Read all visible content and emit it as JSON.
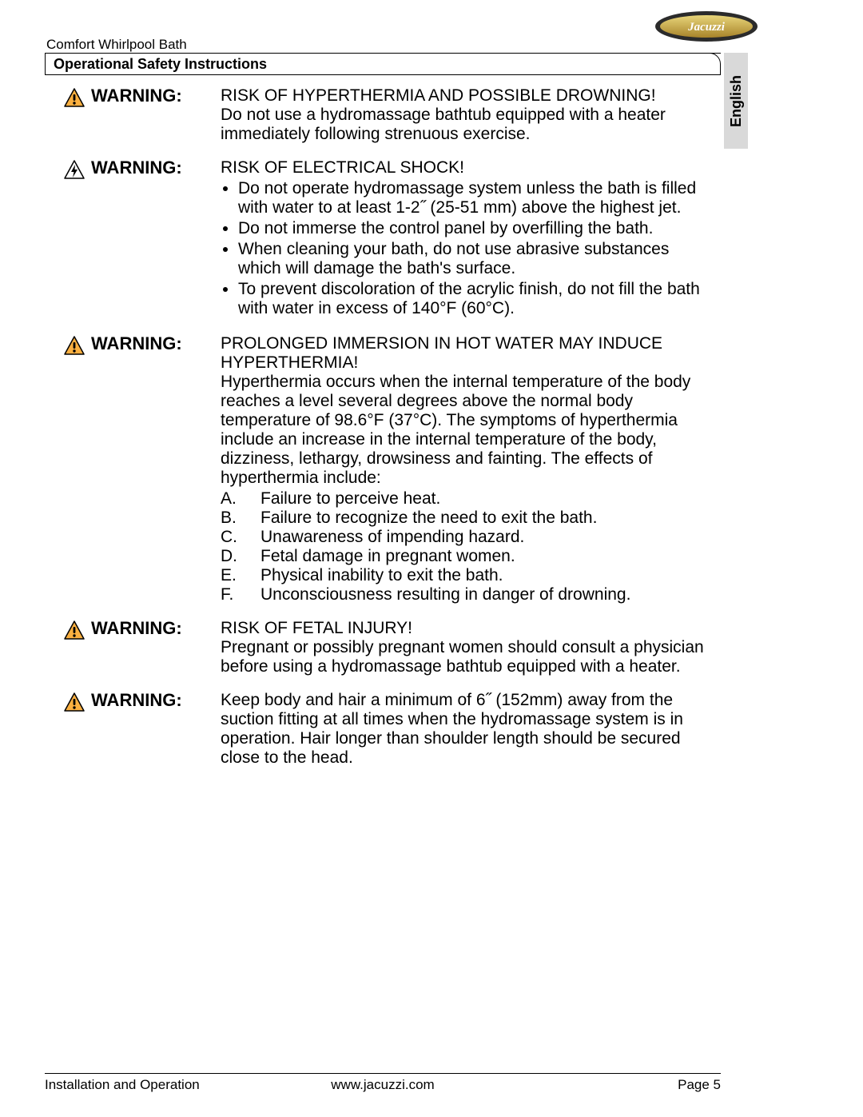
{
  "header": {
    "doc_title": "Comfort Whirlpool Bath",
    "section_title": "Operational Safety Instructions",
    "language_tab": "English",
    "logo_text": "Jacuzzi",
    "logo_colors": {
      "outer": "#2b2b2b",
      "inner_top": "#e8d57a",
      "inner_bottom": "#a8842a",
      "text": "#ffffff"
    }
  },
  "icons": {
    "warning_triangle": {
      "fill": "#fbb040",
      "stroke": "#000000",
      "bang": "#000000"
    },
    "shock_triangle": {
      "fill": "#ffffff",
      "stroke": "#000000",
      "bolt": "#000000"
    }
  },
  "warnings": [
    {
      "icon": "warning",
      "label": "WARNING:",
      "head": "RISK OF HYPERTHERMIA AND POSSIBLE DROWNING!",
      "text": "Do not use a hydromassage bathtub equipped with a heater immediately following strenuous exercise."
    },
    {
      "icon": "shock",
      "label": "WARNING:",
      "head": "RISK OF ELECTRICAL SHOCK!",
      "bullets": [
        "Do not operate hydromassage system unless the bath is filled with water to at least 1-2˝ (25-51 mm) above the highest jet.",
        "Do not immerse the control panel by overfilling the bath.",
        "When cleaning your bath, do not use abrasive substances which will damage the bath's surface.",
        "To prevent discoloration of the acrylic finish, do not fill the bath with water in excess of 140°F (60°C)."
      ]
    },
    {
      "icon": "warning",
      "label": "WARNING:",
      "head": "PROLONGED IMMERSION IN HOT WATER MAY INDUCE HYPERTHERMIA!",
      "text": "Hyperthermia occurs when the internal temperature of the body reaches a level several degrees above the normal body temperature of 98.6°F (37°C). The symptoms of hyperthermia include an increase in the internal temperature of the body, dizziness, lethargy, drowsiness and fainting. The effects of hyperthermia include:",
      "letters": [
        {
          "l": "A.",
          "t": "Failure to perceive heat."
        },
        {
          "l": "B.",
          "t": "Failure to recognize the need to exit the bath."
        },
        {
          "l": "C.",
          "t": "Unawareness of impending hazard."
        },
        {
          "l": "D.",
          "t": "Fetal damage in pregnant women."
        },
        {
          "l": "E.",
          "t": "Physical inability to exit the bath."
        },
        {
          "l": "F.",
          "t": "Unconsciousness resulting in danger of drowning."
        }
      ]
    },
    {
      "icon": "warning",
      "label": "WARNING:",
      "head": "RISK OF FETAL INJURY!",
      "text": "Pregnant or possibly pregnant women should consult a physician before using a hydromassage bathtub equipped with a heater."
    },
    {
      "icon": "warning",
      "label": "WARNING:",
      "text": "Keep body and hair a minimum of 6˝ (152mm) away from the suction fitting at all times when the hydromassage system is in operation. Hair longer than shoulder length should be secured close to the head."
    }
  ],
  "footer": {
    "left": "Installation and Operation",
    "center": "www.jacuzzi.com",
    "right": "Page 5"
  }
}
